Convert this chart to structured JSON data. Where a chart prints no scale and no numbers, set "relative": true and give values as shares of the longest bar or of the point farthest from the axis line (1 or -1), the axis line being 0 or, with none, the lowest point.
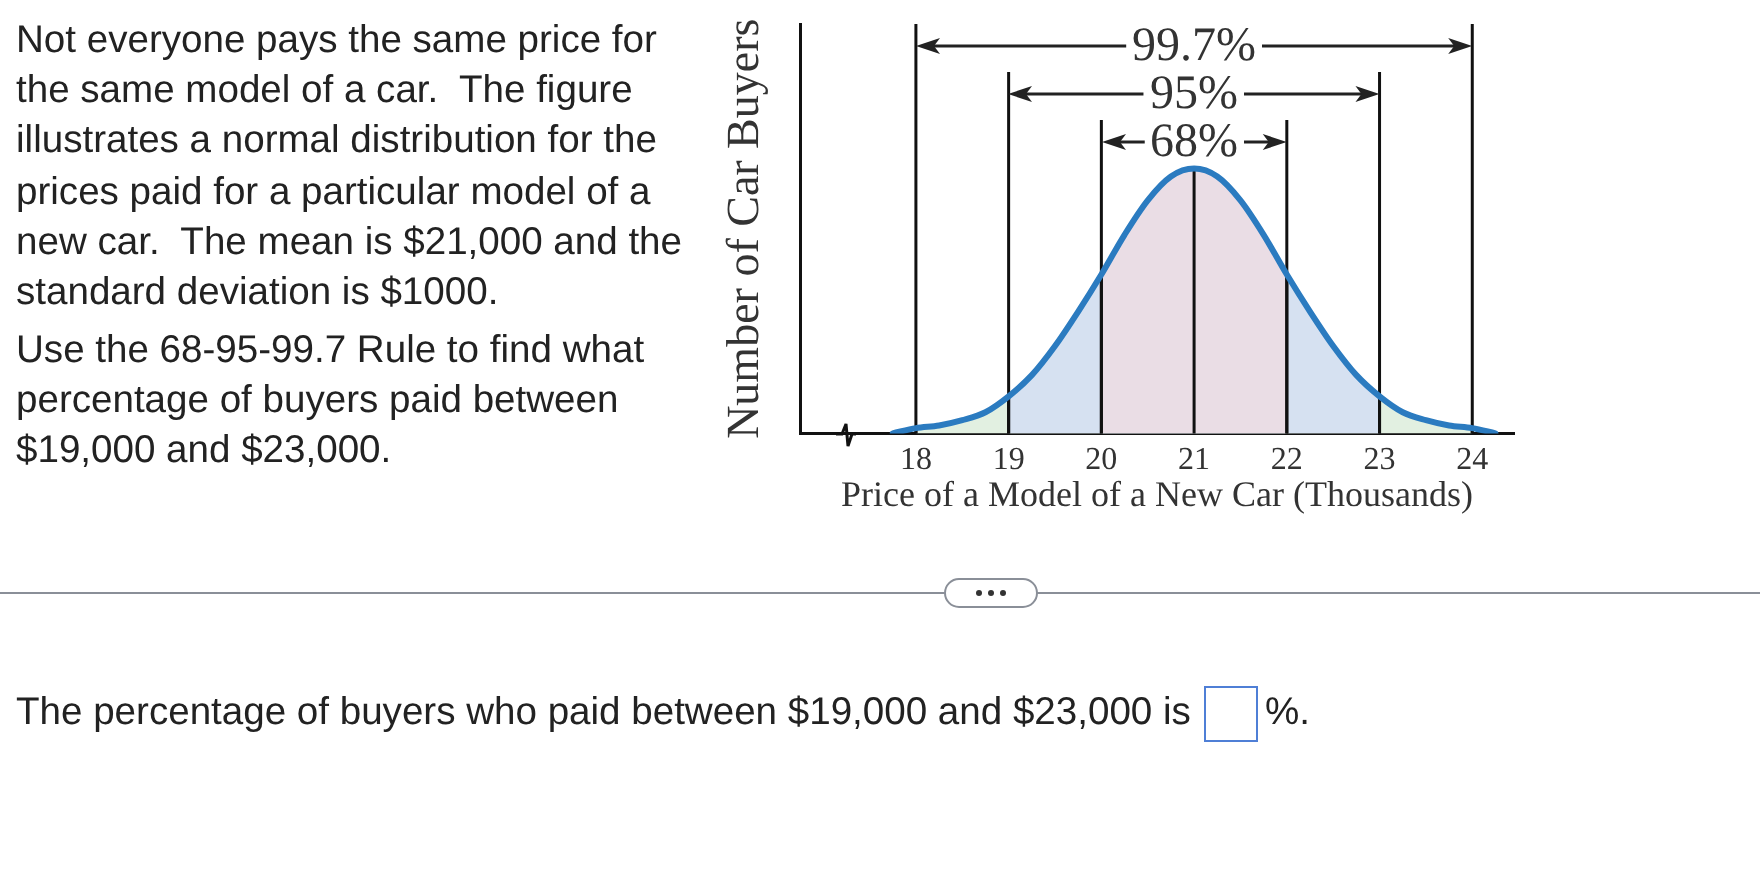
{
  "chart_data": {
    "type": "line",
    "xlabel": "Price of a Model of a New Car (Thousands)",
    "ylabel": "Number of Car Buyers",
    "relative": true,
    "x": [
      17.75,
      18,
      18.25,
      18.5,
      18.75,
      19,
      19.25,
      19.5,
      19.75,
      20,
      20.25,
      20.5,
      20.75,
      21,
      21.25,
      21.5,
      21.75,
      22,
      22.25,
      22.5,
      22.75,
      23,
      23.25,
      23.5,
      23.75,
      24,
      24.25
    ],
    "series": [
      {
        "color": "#2b7bc0",
        "values": [
          0,
          0.02,
          0.03,
          0.05,
          0.08,
          0.14,
          0.22,
          0.33,
          0.46,
          0.6,
          0.75,
          0.88,
          0.97,
          1,
          0.97,
          0.88,
          0.75,
          0.6,
          0.46,
          0.33,
          0.22,
          0.14,
          0.08,
          0.05,
          0.03,
          0.02,
          0
        ]
      }
    ],
    "xlim": [
      16.75,
      24.45
    ],
    "xticks": [
      18,
      19,
      20,
      21,
      22,
      23,
      24
    ],
    "tick_labels": "x",
    "grid": "x",
    "marker": "none",
    "line_style": "solid",
    "bands": [
      {
        "axis": "x",
        "from": 18,
        "to": 24,
        "label": "99.7%",
        "color": "#e2f0e1"
      },
      {
        "axis": "x",
        "from": 19,
        "to": 23,
        "label": "95%",
        "color": "#d6e1f1"
      },
      {
        "axis": "x",
        "from": 20,
        "to": 22,
        "label": "68%",
        "color": "#eadde5"
      }
    ],
    "annotations": [
      "Not everyone pays the same price for the same model of a car.  The figure illustrates a normal distribution for the prices paid for a particular model of a new car.  The mean is $21,000 and the standard deviation is $1000.",
      "Use the 68-95-99.7 Rule to find what percentage of buyers paid between $19,000 and $23,000.",
      "The percentage of buyers who paid between $19,000 and $23,000 is",
      "%."
    ]
  }
}
